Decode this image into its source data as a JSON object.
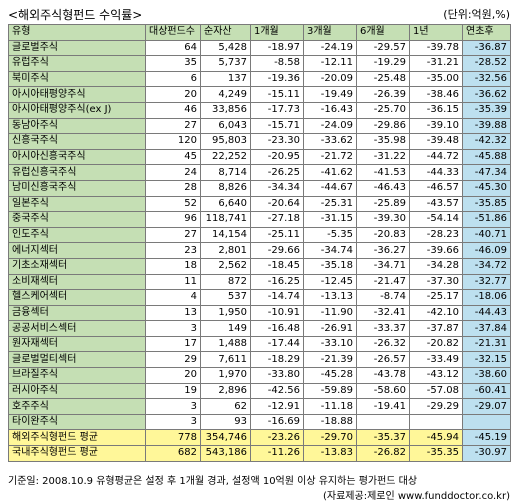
{
  "title": "<해외주식형펀드 수익률>",
  "unit": "(단위:억원,%)",
  "columns": [
    "유형",
    "대상펀드수",
    "순자산",
    "1개월",
    "3개월",
    "6개월",
    "1년",
    "연초후"
  ],
  "rows": [
    [
      "글로벌주식",
      "64",
      "5,428",
      "-18.97",
      "-24.19",
      "-29.57",
      "-39.78",
      "-36.87"
    ],
    [
      "유럽주식",
      "35",
      "5,737",
      "-8.58",
      "-12.11",
      "-19.29",
      "-31.21",
      "-28.52"
    ],
    [
      "북미주식",
      "6",
      "137",
      "-19.36",
      "-20.09",
      "-25.48",
      "-35.00",
      "-32.56"
    ],
    [
      "아시아태평양주식",
      "20",
      "4,249",
      "-15.11",
      "-19.49",
      "-26.39",
      "-38.46",
      "-36.62"
    ],
    [
      "아시아태평양주식(ex J)",
      "46",
      "33,856",
      "-17.73",
      "-16.43",
      "-25.70",
      "-36.15",
      "-35.39"
    ],
    [
      "동남아주식",
      "27",
      "6,043",
      "-15.71",
      "-24.09",
      "-29.86",
      "-39.10",
      "-39.88"
    ],
    [
      "신흥국주식",
      "120",
      "95,803",
      "-23.30",
      "-33.62",
      "-35.98",
      "-39.48",
      "-42.32"
    ],
    [
      "아시아신흥국주식",
      "45",
      "22,252",
      "-20.95",
      "-21.72",
      "-31.22",
      "-44.72",
      "-45.88"
    ],
    [
      "유럽신흥국주식",
      "24",
      "8,714",
      "-26.25",
      "-41.62",
      "-41.53",
      "-44.33",
      "-47.34"
    ],
    [
      "남미신흥국주식",
      "28",
      "8,826",
      "-34.34",
      "-44.67",
      "-46.43",
      "-46.57",
      "-45.30"
    ],
    [
      "일본주식",
      "52",
      "6,640",
      "-20.64",
      "-25.31",
      "-25.89",
      "-43.57",
      "-35.85"
    ],
    [
      "중국주식",
      "96",
      "118,741",
      "-27.18",
      "-31.15",
      "-39.30",
      "-54.14",
      "-51.86"
    ],
    [
      "인도주식",
      "27",
      "14,154",
      "-25.11",
      "-5.35",
      "-20.83",
      "-28.23",
      "-40.71"
    ],
    [
      "에너지섹터",
      "23",
      "2,801",
      "-29.66",
      "-34.74",
      "-36.27",
      "-39.66",
      "-46.09"
    ],
    [
      "기초소재섹터",
      "18",
      "2,562",
      "-18.45",
      "-35.18",
      "-34.71",
      "-34.28",
      "-34.72"
    ],
    [
      "소비재섹터",
      "11",
      "872",
      "-16.25",
      "-12.45",
      "-21.47",
      "-37.30",
      "-32.77"
    ],
    [
      "헬스케어섹터",
      "4",
      "537",
      "-14.74",
      "-13.13",
      "-8.74",
      "-25.17",
      "-18.06"
    ],
    [
      "금융섹터",
      "13",
      "1,950",
      "-10.91",
      "-11.90",
      "-32.41",
      "-42.10",
      "-44.43"
    ],
    [
      "공공서비스섹터",
      "3",
      "149",
      "-16.48",
      "-26.91",
      "-33.37",
      "-37.87",
      "-37.84"
    ],
    [
      "원자재섹터",
      "17",
      "1,488",
      "-17.44",
      "-33.10",
      "-26.32",
      "-20.82",
      "-21.31"
    ],
    [
      "글로벌멀티섹터",
      "29",
      "7,611",
      "-18.29",
      "-21.39",
      "-26.57",
      "-33.49",
      "-32.15"
    ],
    [
      "브라질주식",
      "20",
      "1,970",
      "-33.80",
      "-45.28",
      "-43.78",
      "-43.12",
      "-38.60"
    ],
    [
      "러시아주식",
      "19",
      "2,896",
      "-42.56",
      "-59.89",
      "-58.60",
      "-57.08",
      "-60.41"
    ],
    [
      "호주주식",
      "3",
      "62",
      "-12.91",
      "-11.18",
      "-19.41",
      "-29.29",
      "-29.07"
    ],
    [
      "타이완주식",
      "3",
      "93",
      "-16.69",
      "-18.88",
      "",
      "",
      ""
    ]
  ],
  "summary": [
    [
      "해외주식형펀드 평균",
      "778",
      "354,746",
      "-23.26",
      "-29.70",
      "-35.37",
      "-45.94",
      "-45.19"
    ],
    [
      "국내주식형펀드 평균",
      "682",
      "543,186",
      "-11.26",
      "-13.83",
      "-26.82",
      "-35.35",
      "-30.97"
    ]
  ],
  "footnote": "기준일: 2008.10.9  유형평균은 설정 후 1개월 경과, 설정액 10억원 이상 유지하는 평가펀드 대상",
  "source": "(자료제공:제로인 www.funddoctor.co.kr)"
}
